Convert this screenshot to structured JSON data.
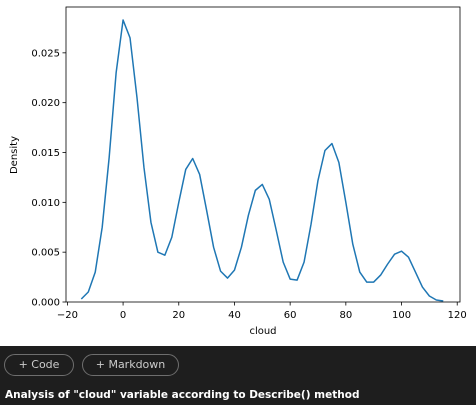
{
  "chart_data": {
    "type": "line",
    "xlabel": "cloud",
    "ylabel": "Density",
    "x": [
      -15,
      -12.5,
      -10,
      -7.5,
      -5,
      -2.5,
      0,
      2.5,
      5,
      7.5,
      10,
      12.5,
      15,
      17.5,
      20,
      22.5,
      25,
      27.5,
      30,
      32.5,
      35,
      37.5,
      40,
      42.5,
      45,
      47.5,
      50,
      52.5,
      55,
      57.5,
      60,
      62.5,
      65,
      67.5,
      70,
      72.5,
      75,
      77.5,
      80,
      82.5,
      85,
      87.5,
      90,
      92.5,
      95,
      97.5,
      100,
      102.5,
      105,
      107.5,
      110,
      112.5,
      115
    ],
    "series": [
      {
        "color": "#1f77b4",
        "values": [
          0.0003,
          0.001,
          0.003,
          0.0075,
          0.0145,
          0.023,
          0.0283,
          0.0265,
          0.0205,
          0.0135,
          0.008,
          0.005,
          0.0047,
          0.0065,
          0.01,
          0.0133,
          0.0144,
          0.0128,
          0.0092,
          0.0055,
          0.0031,
          0.0024,
          0.0032,
          0.0055,
          0.0087,
          0.0112,
          0.0118,
          0.0103,
          0.0072,
          0.004,
          0.0023,
          0.0022,
          0.004,
          0.0078,
          0.0122,
          0.0152,
          0.0159,
          0.014,
          0.01,
          0.0058,
          0.003,
          0.002,
          0.002,
          0.0027,
          0.0038,
          0.0048,
          0.0051,
          0.0045,
          0.003,
          0.0015,
          0.0006,
          0.0002,
          0.0001
        ]
      }
    ],
    "xlim": [
      -20.5,
      121
    ],
    "ylim": [
      0,
      0.0296
    ],
    "xticks": [
      {
        "value": -20,
        "label": "−20"
      },
      0,
      20,
      40,
      60,
      80,
      100,
      120
    ],
    "yticks": [
      {
        "value": 0,
        "label": "0.000"
      },
      {
        "value": 0.005,
        "label": "0.005"
      },
      {
        "value": 0.01,
        "label": "0.010"
      },
      {
        "value": 0.015,
        "label": "0.015"
      },
      {
        "value": 0.02,
        "label": "0.020"
      },
      {
        "value": 0.025,
        "label": "0.025"
      }
    ],
    "grid": false
  },
  "ui": {
    "buttons": [
      "+ Code",
      "+ Markdown"
    ],
    "footer": "Analysis of \"cloud\" variable according to Describe() method"
  }
}
